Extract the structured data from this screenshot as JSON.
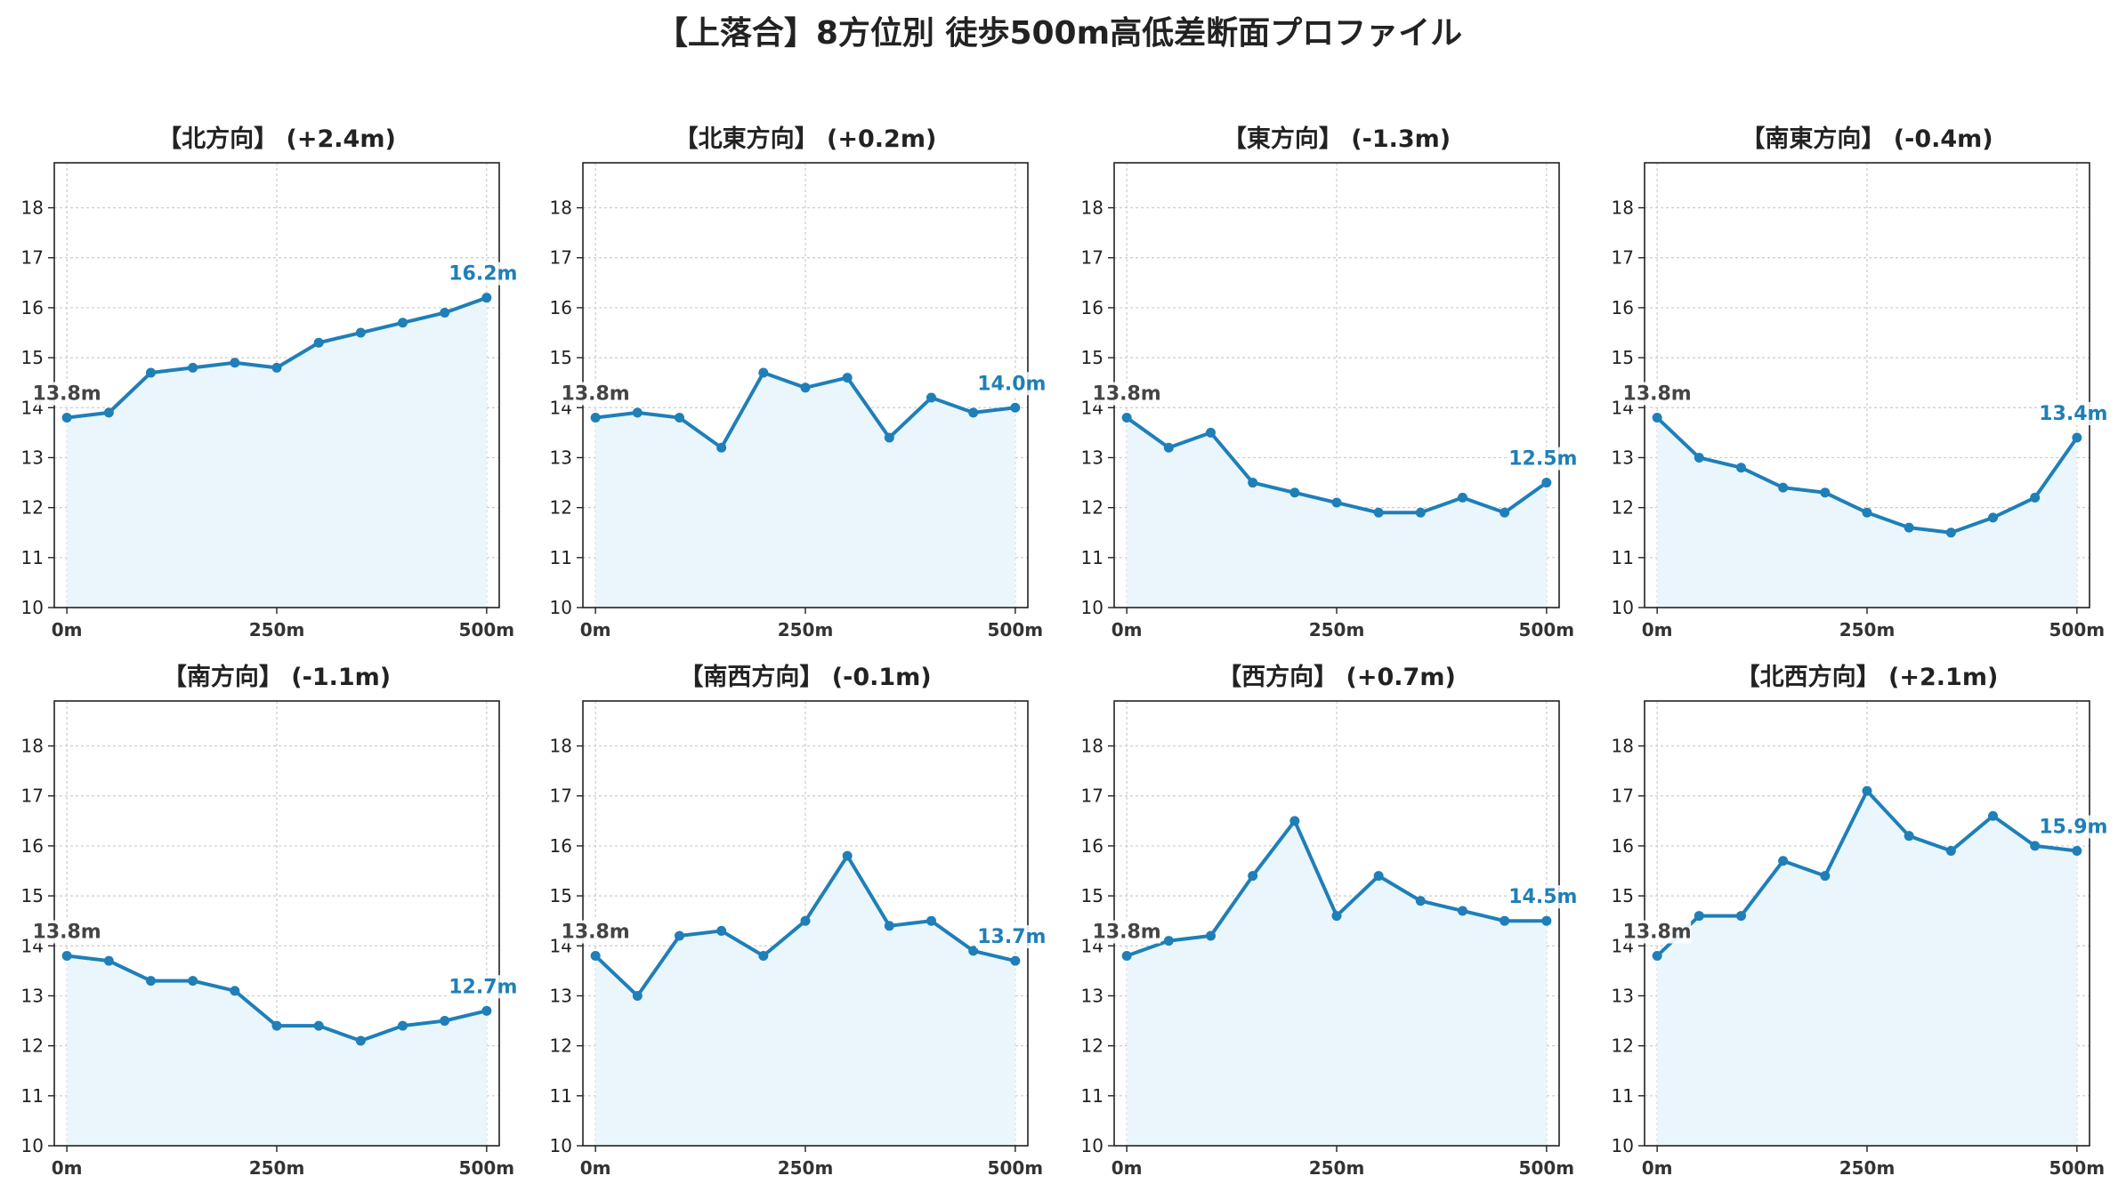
{
  "title": "【上落合】8方位別 徒歩500m高低差断面プロファイル",
  "chart_data": [
    {
      "type": "line",
      "title": "【北方向】 (+2.4m)",
      "x": [
        0,
        50,
        100,
        150,
        200,
        250,
        300,
        350,
        400,
        450,
        500
      ],
      "values": [
        13.8,
        13.9,
        14.7,
        14.8,
        14.9,
        14.8,
        15.3,
        15.5,
        15.7,
        15.9,
        16.2
      ],
      "start_label": "13.8m",
      "end_label": "16.2m"
    },
    {
      "type": "line",
      "title": "【北東方向】 (+0.2m)",
      "x": [
        0,
        50,
        100,
        150,
        200,
        250,
        300,
        350,
        400,
        450,
        500
      ],
      "values": [
        13.8,
        13.9,
        13.8,
        13.2,
        14.7,
        14.4,
        14.6,
        13.4,
        14.2,
        13.9,
        14.0
      ],
      "start_label": "13.8m",
      "end_label": "14.0m"
    },
    {
      "type": "line",
      "title": "【東方向】 (-1.3m)",
      "x": [
        0,
        50,
        100,
        150,
        200,
        250,
        300,
        350,
        400,
        450,
        500
      ],
      "values": [
        13.8,
        13.2,
        13.5,
        12.5,
        12.3,
        12.1,
        11.9,
        11.9,
        12.2,
        11.9,
        12.5
      ],
      "start_label": "13.8m",
      "end_label": "12.5m"
    },
    {
      "type": "line",
      "title": "【南東方向】 (-0.4m)",
      "x": [
        0,
        50,
        100,
        150,
        200,
        250,
        300,
        350,
        400,
        450,
        500
      ],
      "values": [
        13.8,
        13.0,
        12.8,
        12.4,
        12.3,
        11.9,
        11.6,
        11.5,
        11.8,
        12.2,
        13.4
      ],
      "start_label": "13.8m",
      "end_label": "13.4m"
    },
    {
      "type": "line",
      "title": "【南方向】 (-1.1m)",
      "x": [
        0,
        50,
        100,
        150,
        200,
        250,
        300,
        350,
        400,
        450,
        500
      ],
      "values": [
        13.8,
        13.7,
        13.3,
        13.3,
        13.1,
        12.4,
        12.4,
        12.1,
        12.4,
        12.5,
        12.7
      ],
      "start_label": "13.8m",
      "end_label": "12.7m"
    },
    {
      "type": "line",
      "title": "【南西方向】 (-0.1m)",
      "x": [
        0,
        50,
        100,
        150,
        200,
        250,
        300,
        350,
        400,
        450,
        500
      ],
      "values": [
        13.8,
        13.0,
        14.2,
        14.3,
        13.8,
        14.5,
        15.8,
        14.4,
        14.5,
        13.9,
        13.7
      ],
      "start_label": "13.8m",
      "end_label": "13.7m"
    },
    {
      "type": "line",
      "title": "【西方向】 (+0.7m)",
      "x": [
        0,
        50,
        100,
        150,
        200,
        250,
        300,
        350,
        400,
        450,
        500
      ],
      "values": [
        13.8,
        14.1,
        14.2,
        15.4,
        16.5,
        14.6,
        15.4,
        14.9,
        14.7,
        14.5,
        14.5
      ],
      "start_label": "13.8m",
      "end_label": "14.5m"
    },
    {
      "type": "line",
      "title": "【北西方向】 (+2.1m)",
      "x": [
        0,
        50,
        100,
        150,
        200,
        250,
        300,
        350,
        400,
        450,
        500
      ],
      "values": [
        13.8,
        14.6,
        14.6,
        15.7,
        15.4,
        17.1,
        16.2,
        15.9,
        16.6,
        16.0,
        15.9
      ],
      "start_label": "13.8m",
      "end_label": "15.9m"
    }
  ],
  "shared_axes": {
    "ylim": [
      10,
      18.9
    ],
    "yticks": [
      "10",
      "11",
      "12",
      "13",
      "14",
      "15",
      "16",
      "17",
      "18"
    ],
    "xticks": [
      {
        "value": 0,
        "label": "0m"
      },
      {
        "value": 250,
        "label": "250m"
      },
      {
        "value": 500,
        "label": "500m"
      }
    ],
    "xlim": [
      -15,
      515
    ],
    "grid": true
  },
  "colors": {
    "line": "#1f7fb8",
    "fill": "#eaf6fb",
    "grid": "#cccccc",
    "start_label": "#444444"
  }
}
